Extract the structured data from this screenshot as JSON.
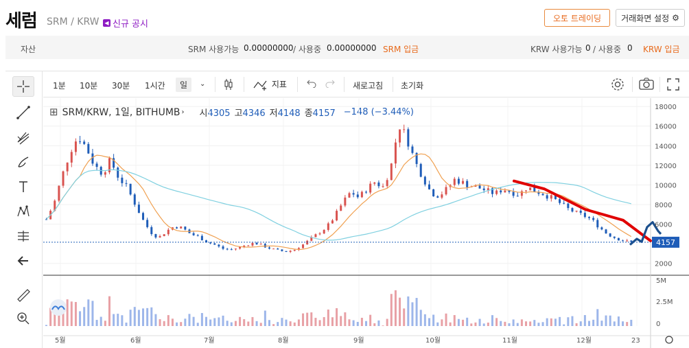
{
  "header": {
    "title": "세럼",
    "pair": "SRM / KRW",
    "notice": "신규 공시",
    "auto_trading": "오토 트레이딩",
    "screen_settings": "거래화면 설정"
  },
  "assets": {
    "label": "자산",
    "srm_available_label": "SRM 사용가능",
    "srm_available": "0.00000000",
    "srm_in_use_label": "/ 사용중",
    "srm_in_use": "0.00000000",
    "srm_deposit": "SRM 입금",
    "krw_available_label": "KRW 사용가능",
    "krw_available": "0",
    "krw_in_use_label": "/ 사용중",
    "krw_in_use": "0",
    "krw_deposit": "KRW 입금"
  },
  "toolbar": {
    "intervals": [
      "1분",
      "10분",
      "30분",
      "1시간",
      "일"
    ],
    "indicator": "지표",
    "refresh": "새로고침",
    "reset": "초기화"
  },
  "legend": {
    "symbol": "SRM/KRW, 1일, BITHUMB",
    "open_label": "시",
    "open": "4305",
    "high_label": "고",
    "high": "4346",
    "low_label": "저",
    "low": "4148",
    "close_label": "종",
    "close": "4157",
    "change": "−148 (−3.44%)"
  },
  "colors": {
    "up": "#d9534f",
    "down": "#1f5db8",
    "ma_short": "#f0a050",
    "ma_long": "#7fd0e0",
    "annotation_red": "#e00000",
    "annotation_blue": "#1b4f8c"
  },
  "chart_data": {
    "type": "candlestick",
    "x_tick_labels": [
      "5월",
      "6월",
      "7월",
      "8월",
      "9월",
      "10월",
      "11월",
      "12월",
      "23"
    ],
    "price_ticks": [
      "18000",
      "16000",
      "14000",
      "12000",
      "10000",
      "8000",
      "6000",
      "2000"
    ],
    "last_price_label": "4157",
    "volume_ticks": [
      "5M",
      "2.5M",
      "0"
    ],
    "ylim": [
      1000,
      18500
    ],
    "close_path": [
      6500,
      8200,
      11000,
      13500,
      15000,
      13800,
      12000,
      11200,
      12500,
      10800,
      9800,
      8200,
      6500,
      5200,
      4600,
      5300,
      5800,
      5600,
      5000,
      4700,
      4200,
      3900,
      3500,
      3400,
      3600,
      3900,
      4100,
      3800,
      3500,
      3300,
      3200,
      3400,
      3900,
      4500,
      5100,
      5700,
      6800,
      8200,
      9300,
      8700,
      9600,
      10300,
      9800,
      11800,
      16200,
      14800,
      12400,
      10800,
      9200,
      8900,
      9600,
      10600,
      10200,
      9900,
      9700,
      9400,
      9100,
      9600,
      9300,
      9000,
      9800,
      9400,
      9100,
      8700,
      8200,
      7600,
      7200,
      6900,
      6500,
      5700,
      5000,
      4600,
      4300,
      4157
    ],
    "volume_ticks_note": "",
    "grid": true
  }
}
